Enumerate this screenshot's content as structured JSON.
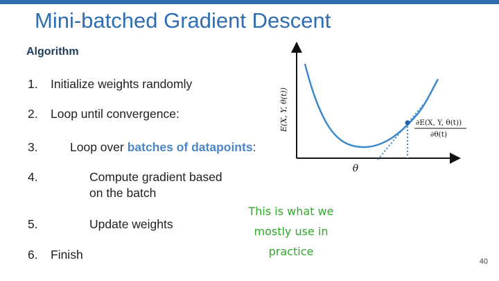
{
  "slide": {
    "title": "Mini-batched Gradient Descent",
    "number": "40",
    "accent_color": "#2f6db1"
  },
  "algorithm": {
    "heading": "Algorithm",
    "steps": [
      {
        "num": "1.",
        "text": "Initialize weights randomly"
      },
      {
        "num": "2.",
        "text": "Loop until convergence:"
      },
      {
        "num": "3.",
        "pre": "Loop over ",
        "highlight": "batches of  datapoints",
        "post": ":"
      },
      {
        "num": "4.",
        "line1": "Compute gradient based",
        "line2": "on the batch"
      },
      {
        "num": "5.",
        "text": "Update weights"
      },
      {
        "num": "6.",
        "text": "Finish"
      }
    ]
  },
  "plot": {
    "ylabel": "E(X, Y, θ(t))",
    "xlabel": "θ",
    "derivative_numerator": "∂E(X, Y, θ(t))",
    "derivative_denominator": "∂θ(t)",
    "curve_color": "#3a87cc"
  },
  "annotation": {
    "lines": [
      "This is what we",
      "mostly use in",
      "practice"
    ],
    "color": "#2fa82a"
  }
}
